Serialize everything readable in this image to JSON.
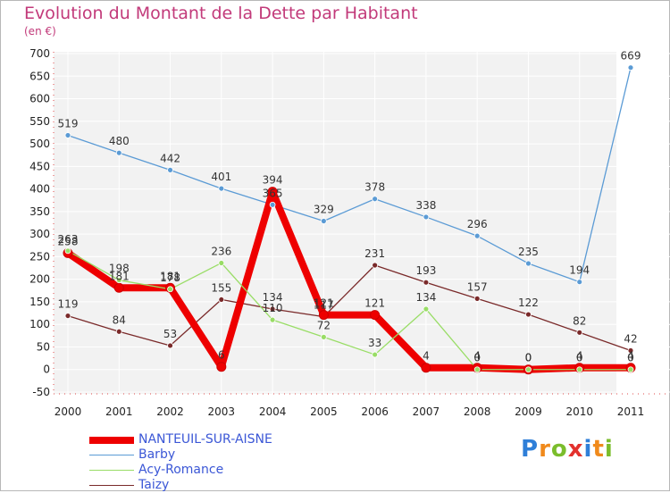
{
  "title": "Evolution du Montant de la Dette par Habitant",
  "subtitle": "(en €)",
  "logo": {
    "text": "Proxiti",
    "letters": [
      {
        "ch": "P",
        "color": "#2f7fd8"
      },
      {
        "ch": "r",
        "color": "#f08a1c"
      },
      {
        "ch": "o",
        "color": "#7bbd2c"
      },
      {
        "ch": "x",
        "color": "#e3312d"
      },
      {
        "ch": "i",
        "color": "#2f7fd8"
      },
      {
        "ch": "t",
        "color": "#f08a1c"
      },
      {
        "ch": "i",
        "color": "#7bbd2c"
      }
    ]
  },
  "chart_data": {
    "type": "line",
    "title": "Evolution du Montant de la Dette par Habitant",
    "subtitle": "(en €)",
    "xlabel": "",
    "ylabel": "",
    "ylim": [
      -50,
      700
    ],
    "yticks": [
      -50,
      0,
      50,
      100,
      150,
      200,
      250,
      300,
      350,
      400,
      450,
      500,
      550,
      600,
      650,
      700
    ],
    "x": [
      "2000",
      "2001",
      "2002",
      "2003",
      "2004",
      "2005",
      "2006",
      "2007",
      "2008",
      "2009",
      "2010",
      "2011"
    ],
    "grid": true,
    "legend_position": "bottom-left",
    "series": [
      {
        "name": "NANTEUIL-SUR-AISNE",
        "color": "#ee0000",
        "values": [
          258,
          181,
          181,
          6,
          394,
          121,
          121,
          4,
          4,
          0,
          4,
          4
        ],
        "labels": [
          "258",
          "181",
          "181",
          "6",
          "394",
          "121",
          "121",
          "4",
          "4",
          "0",
          "4",
          "4"
        ]
      },
      {
        "name": "Barby",
        "color": "#5b9bd5",
        "values": [
          519,
          480,
          442,
          401,
          365,
          329,
          378,
          338,
          296,
          235,
          194,
          669
        ],
        "labels": [
          "519",
          "480",
          "442",
          "401",
          "365",
          "329",
          "378",
          "338",
          "296",
          "235",
          "194",
          "669"
        ]
      },
      {
        "name": "Acy-Romance",
        "color": "#99dd66",
        "values": [
          263,
          198,
          178,
          236,
          110,
          72,
          33,
          134,
          0,
          0,
          0,
          0
        ],
        "labels": [
          "263",
          "198",
          "178",
          "236",
          "110",
          "72",
          "33",
          "134",
          "0",
          "0",
          "0",
          "0"
        ]
      },
      {
        "name": "Taizy",
        "color": "#7a2a2a",
        "values": [
          119,
          84,
          53,
          155,
          134,
          117,
          231,
          193,
          157,
          122,
          82,
          42
        ],
        "labels": [
          "119",
          "84",
          "53",
          "155",
          "134",
          "117",
          "231",
          "193",
          "157",
          "122",
          "82",
          "42"
        ]
      }
    ]
  }
}
